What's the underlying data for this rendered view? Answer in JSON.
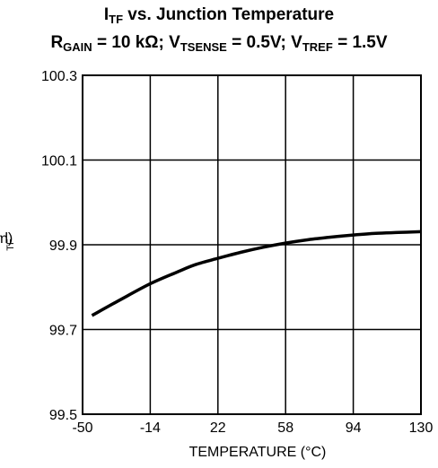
{
  "chart_data": {
    "type": "line",
    "title": {
      "line1": {
        "main": "I",
        "sub": "TF",
        "rest": " vs. Junction Temperature"
      },
      "line2": [
        {
          "main": "R",
          "sub": "GAIN",
          "rest": " = 10 kΩ; "
        },
        {
          "main": "V",
          "sub": "TSENSE",
          "rest": " = 0.5V; "
        },
        {
          "main": "V",
          "sub": "TREF",
          "rest": " = 1.5V"
        }
      ]
    },
    "xlabel": "TEMPERATURE (°C)",
    "ylabel": {
      "main": "I",
      "sub": "TF",
      "rest": " (µA)"
    },
    "xlim": [
      -50,
      130
    ],
    "ylim": [
      99.5,
      100.3
    ],
    "x_ticks": [
      -50,
      -14,
      22,
      58,
      94,
      130
    ],
    "y_ticks": [
      99.5,
      99.7,
      99.9,
      100.1,
      100.3
    ],
    "x_tick_labels": [
      "-50",
      "-14",
      "22",
      "58",
      "94",
      "130"
    ],
    "y_tick_labels": [
      "99.5",
      "99.7",
      "99.9",
      "100.1",
      "100.3"
    ],
    "grid": true,
    "series": [
      {
        "x": [
          -45,
          -30,
          -14,
          0,
          10,
          22,
          34,
          46,
          58,
          70,
          82,
          94,
          106,
          118,
          130
        ],
        "y": [
          99.733,
          99.77,
          99.808,
          99.835,
          99.853,
          99.868,
          99.882,
          99.894,
          99.904,
          99.912,
          99.918,
          99.923,
          99.927,
          99.929,
          99.931
        ]
      }
    ],
    "colors": {
      "line": "#000000",
      "grid": "#000000"
    }
  }
}
